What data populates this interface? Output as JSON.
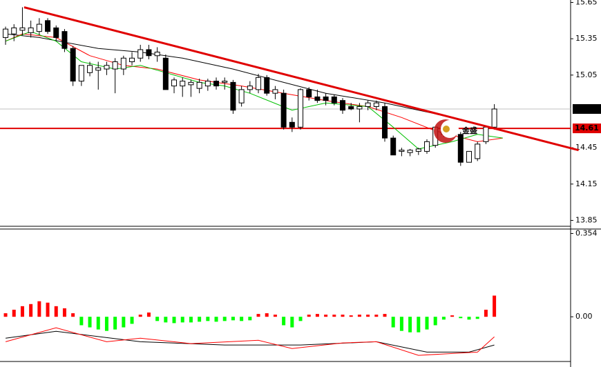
{
  "chart_data": [
    {
      "type": "candlestick",
      "xlim": [
        -0.66,
        67.05
      ],
      "ylim": [
        13.79,
        15.67
      ],
      "yticks": [
        15.65,
        15.35,
        15.05,
        14.45,
        14.15,
        13.85
      ],
      "open": [
        15.36,
        15.39,
        15.42,
        15.4,
        15.41,
        15.5,
        15.44,
        15.41,
        15.27,
        15.0,
        15.07,
        15.09,
        15.1,
        15.1,
        15.1,
        15.16,
        15.19,
        15.26,
        15.21,
        15.19,
        14.96,
        14.96,
        14.97,
        14.94,
        14.96,
        15.0,
        14.99,
        14.99,
        14.82,
        14.93,
        14.93,
        15.03,
        14.9,
        14.9,
        14.66,
        14.62,
        14.93,
        14.87,
        14.87,
        14.87,
        14.84,
        14.79,
        14.77,
        14.79,
        14.79,
        14.79,
        14.53,
        14.42,
        14.41,
        14.42,
        14.42,
        14.47,
        14.56,
        14.56,
        14.56,
        14.33,
        14.36,
        14.5,
        14.62
      ],
      "high": [
        15.45,
        15.47,
        15.61,
        15.5,
        15.52,
        15.52,
        15.46,
        15.43,
        15.29,
        15.13,
        15.16,
        15.16,
        15.16,
        15.19,
        15.21,
        15.24,
        15.3,
        15.3,
        15.28,
        15.22,
        15.03,
        15.03,
        15.01,
        15.02,
        15.02,
        15.03,
        15.03,
        15.01,
        14.96,
        15.0,
        15.06,
        15.05,
        14.96,
        14.93,
        14.7,
        14.94,
        14.95,
        14.93,
        14.9,
        14.89,
        14.86,
        14.82,
        14.82,
        14.84,
        14.84,
        14.82,
        14.55,
        14.45,
        14.44,
        14.45,
        14.52,
        14.62,
        14.65,
        14.64,
        14.58,
        14.42,
        14.5,
        14.62,
        14.81
      ],
      "low": [
        15.3,
        15.33,
        15.38,
        15.36,
        15.38,
        15.39,
        15.33,
        15.24,
        14.96,
        14.96,
        15.04,
        14.93,
        15.05,
        14.9,
        15.05,
        15.13,
        15.16,
        15.18,
        15.16,
        14.93,
        14.9,
        14.87,
        14.87,
        14.9,
        14.92,
        14.93,
        14.93,
        14.73,
        14.79,
        14.9,
        14.9,
        14.88,
        14.85,
        14.6,
        14.58,
        14.6,
        14.84,
        14.82,
        14.8,
        14.8,
        14.73,
        14.76,
        14.66,
        14.76,
        14.76,
        14.5,
        14.39,
        14.38,
        14.38,
        14.39,
        14.4,
        14.45,
        14.54,
        14.54,
        14.3,
        14.33,
        14.34,
        14.48,
        14.6
      ],
      "close": [
        15.43,
        15.44,
        15.44,
        15.44,
        15.47,
        15.41,
        15.36,
        15.27,
        15.0,
        15.13,
        15.13,
        15.11,
        15.13,
        15.16,
        15.19,
        15.19,
        15.26,
        15.21,
        15.24,
        14.93,
        15.01,
        15.0,
        14.99,
        14.99,
        15.0,
        14.96,
        15.0,
        14.76,
        14.93,
        14.96,
        15.03,
        14.9,
        14.93,
        14.62,
        14.62,
        14.93,
        14.87,
        14.84,
        14.84,
        14.82,
        14.76,
        14.77,
        14.79,
        14.82,
        14.82,
        14.53,
        14.39,
        14.43,
        14.43,
        14.44,
        14.5,
        14.62,
        14.62,
        14.62,
        14.33,
        14.42,
        14.48,
        14.62,
        14.77
      ],
      "lines": [
        {
          "color": "#000000",
          "x": [
            0,
            4,
            11,
            16,
            21,
            27,
            33,
            38,
            45,
            51,
            56,
            59
          ],
          "values": [
            15.39,
            15.36,
            15.27,
            15.24,
            15.19,
            15.1,
            14.99,
            14.9,
            14.82,
            14.73,
            14.64,
            14.59
          ]
        },
        {
          "color": "#ff0000",
          "x": [
            0,
            2,
            6,
            10,
            14,
            18,
            23,
            28,
            33,
            38,
            43,
            47,
            51,
            56,
            59
          ],
          "values": [
            15.33,
            15.39,
            15.36,
            15.21,
            15.13,
            15.1,
            15.01,
            14.96,
            14.9,
            14.84,
            14.79,
            14.7,
            14.59,
            14.5,
            14.53
          ]
        },
        {
          "color": "#00c000",
          "x": [
            0,
            3,
            6,
            9,
            13,
            16,
            19,
            23,
            26,
            29,
            34,
            38,
            43,
            46,
            49,
            53,
            56,
            59
          ],
          "values": [
            15.33,
            15.41,
            15.33,
            15.16,
            15.1,
            15.13,
            15.07,
            14.99,
            14.96,
            14.9,
            14.76,
            14.82,
            14.79,
            14.62,
            14.44,
            14.5,
            14.56,
            14.53
          ]
        }
      ],
      "trendline": {
        "color": "#e00000",
        "x": [
          2.2,
          68
        ],
        "values": [
          15.61,
          14.43
        ]
      },
      "price_tags": [
        {
          "value": 14.77,
          "color": "#000000",
          "line_color": "#c0c0c0"
        },
        {
          "value": 14.61,
          "color": "#e00000",
          "line_color": "#e00000"
        }
      ],
      "watermark": "金盛"
    },
    {
      "type": "oscillator",
      "xlim": [
        -0.66,
        67.05
      ],
      "ylim": [
        -0.19,
        0.37
      ],
      "yticks": [
        0.354,
        {
          "value": 0,
          "label": "0.00"
        }
      ],
      "values": [
        0.015,
        0.03,
        0.045,
        0.054,
        0.066,
        0.06,
        0.045,
        0.036,
        0.015,
        -0.036,
        -0.045,
        -0.054,
        -0.06,
        -0.054,
        -0.045,
        -0.03,
        0.009,
        0.018,
        -0.018,
        -0.024,
        -0.027,
        -0.024,
        -0.024,
        -0.021,
        -0.018,
        -0.021,
        -0.018,
        -0.015,
        -0.018,
        -0.015,
        0.012,
        0.015,
        0.009,
        -0.036,
        -0.045,
        -0.018,
        0.009,
        0.012,
        0.009,
        0.009,
        0.009,
        0.006,
        0.009,
        0.009,
        0.009,
        0.012,
        -0.045,
        -0.06,
        -0.066,
        -0.066,
        -0.054,
        -0.036,
        -0.012,
        0.006,
        -0.006,
        -0.012,
        -0.009,
        0.03,
        0.09
      ],
      "up_color": "#ff0000",
      "down_color": "#00ff00",
      "lines": [
        {
          "color": "#000000",
          "x": [
            0,
            6,
            16,
            26,
            35,
            44,
            50,
            55,
            58
          ],
          "values": [
            -0.091,
            -0.062,
            -0.106,
            -0.12,
            -0.12,
            -0.106,
            -0.15,
            -0.15,
            -0.12
          ]
        },
        {
          "color": "#ff0000",
          "x": [
            0,
            6,
            12,
            16,
            22,
            30,
            34,
            40,
            44,
            49,
            56,
            58
          ],
          "values": [
            -0.106,
            -0.047,
            -0.106,
            -0.091,
            -0.114,
            -0.1,
            -0.135,
            -0.111,
            -0.106,
            -0.164,
            -0.15,
            -0.085
          ]
        }
      ]
    }
  ]
}
